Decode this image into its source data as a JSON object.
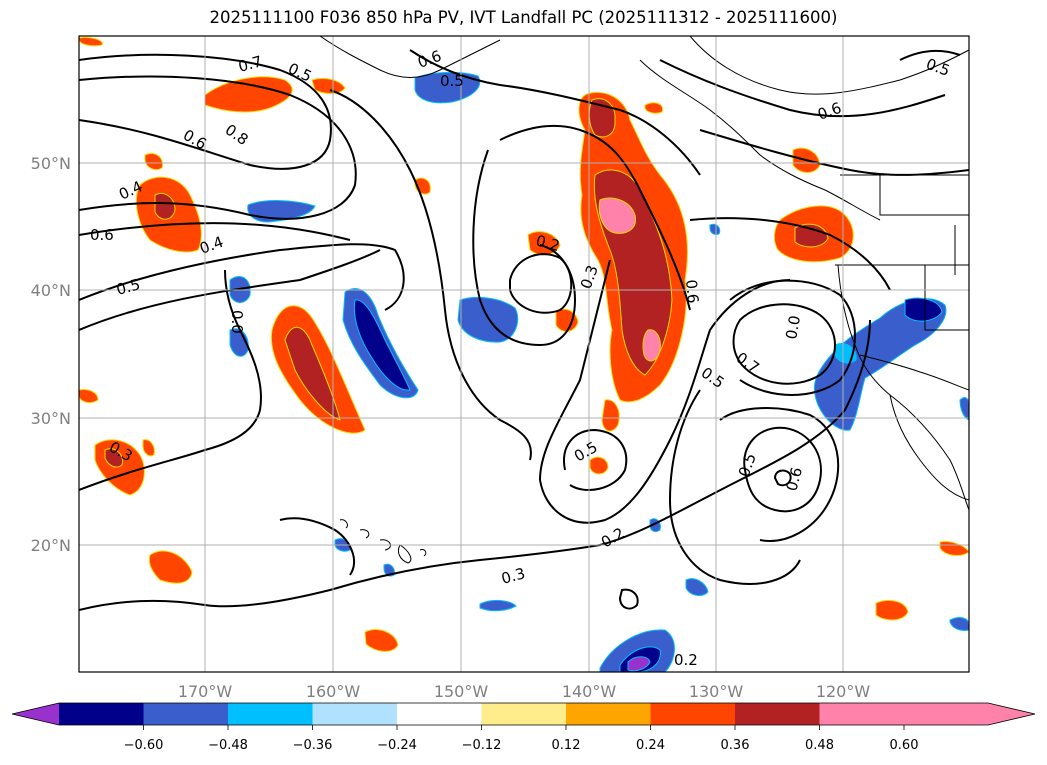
{
  "title": "2025111100 F036 850 hPa PV, IVT Landfall PC (2025111312 - 2025111600)",
  "lon_labels": [
    "170°W",
    "160°W",
    "150°W",
    "140°W",
    "130°W",
    "120°W"
  ],
  "lat_labels": [
    "50°N",
    "40°N",
    "30°N",
    "20°N"
  ],
  "colorbar": {
    "colors": [
      "#9932cc",
      "#00008b",
      "#3a5fcd",
      "#00bfff",
      "#b0e2ff",
      "#ffffff",
      "#ffec8b",
      "#ffa500",
      "#ff4500",
      "#b22222",
      "#ff82ab"
    ],
    "tick_labels": [
      "−0.60",
      "−0.48",
      "−0.36",
      "−0.24",
      "−0.12",
      "0.12",
      "0.24",
      "0.36",
      "0.48",
      "0.60"
    ]
  },
  "contour_labels": [
    "0.7",
    "0.5",
    "0.6",
    "0.5",
    "0.6",
    "0.8",
    "0.5",
    "0.4",
    "0.6",
    "0.4",
    "0.5",
    "0.0",
    "0.2",
    "0.3",
    "0.6",
    "0.0",
    "0.7",
    "0.5",
    "0.5",
    "0.5",
    "0.6",
    "0.3",
    "0.2",
    "0.3",
    "0.2",
    "0.6"
  ]
}
